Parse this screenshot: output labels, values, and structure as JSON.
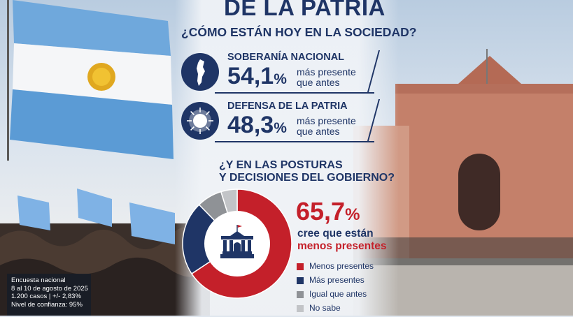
{
  "header": {
    "title": "DE LA PATRIA",
    "subtitle": "¿CÓMO ESTÁN HOY EN LA SOCIEDAD?"
  },
  "stats": [
    {
      "label": "SOBERANÍA NACIONAL",
      "value": "54,1",
      "unit": "%",
      "desc_line1": "más presente",
      "desc_line2": "que antes",
      "icon": "argentina-map-icon"
    },
    {
      "label": "DEFENSA DE LA PATRIA",
      "value": "48,3",
      "unit": "%",
      "desc_line1": "más presente",
      "desc_line2": "que antes",
      "icon": "sun-of-may-icon"
    }
  ],
  "question2": {
    "line1": "¿Y EN LAS POSTURAS",
    "line2": "Y DECISIONES DEL GOBIERNO?"
  },
  "highlight": {
    "value": "65,7",
    "unit": "%",
    "line1": "cree que están",
    "line2": "menos presentes"
  },
  "footnote": {
    "line1": "Encuesta nacional",
    "line2": "8 al 10 de agosto de 2025",
    "line3": "1.200 casos | +/- 2,83%",
    "line4": "Nivel de confianza: 95%"
  },
  "colors": {
    "navy": "#1f3566",
    "red": "#c4202a",
    "gray": "#8f9296",
    "lightgray": "#c2c4c7"
  },
  "chart_data": {
    "type": "pie",
    "donut": true,
    "center_icon": "government-building-icon",
    "categories": [
      "Menos presentes",
      "Más presentes",
      "Igual que antes",
      "No sabe"
    ],
    "values": [
      65.7,
      22,
      7.5,
      4.8
    ],
    "colors": [
      "#c4202a",
      "#1f3566",
      "#8f9296",
      "#c2c4c7"
    ],
    "legend_position": "right"
  }
}
